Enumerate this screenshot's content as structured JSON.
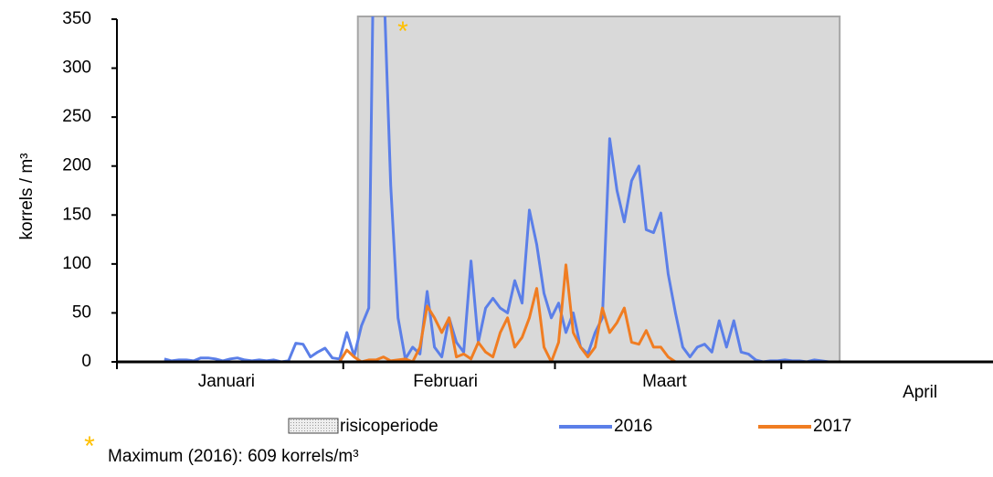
{
  "chart_data": {
    "type": "line",
    "y_label": "korrels / m³",
    "categories": [
      null,
      null,
      null,
      null,
      null,
      null,
      null,
      null,
      null,
      null,
      null,
      null,
      null,
      null,
      null,
      "Januari",
      null,
      null,
      null,
      null,
      null,
      null,
      null,
      null,
      null,
      null,
      null,
      null,
      null,
      null,
      null,
      null,
      null,
      null,
      null,
      null,
      null,
      null,
      null,
      null,
      null,
      null,
      null,
      null,
      null,
      "Februari",
      null,
      null,
      null,
      null,
      null,
      null,
      null,
      null,
      null,
      null,
      null,
      null,
      null,
      null,
      null,
      null,
      null,
      null,
      null,
      null,
      null,
      null,
      null,
      null,
      null,
      null,
      null,
      null,
      null,
      "Maart",
      null,
      null,
      null,
      null,
      null,
      null,
      null,
      null,
      null,
      null,
      null,
      null,
      null,
      null,
      null,
      null,
      null,
      null,
      null,
      null,
      null,
      null,
      null,
      null,
      null,
      null,
      null,
      null,
      null,
      null,
      null,
      null,
      null,
      null,
      "April",
      null,
      null,
      null,
      null,
      null,
      null,
      null,
      null,
      null
    ],
    "xticks": [
      0,
      31,
      60,
      91
    ],
    "ylim": [
      0,
      350
    ],
    "yticks": [
      0,
      50,
      100,
      150,
      200,
      250,
      300,
      350
    ],
    "risk_period": {
      "name": "risicoperiode",
      "start": 33,
      "end": 99,
      "color": "#d9d9d9"
    },
    "series": [
      {
        "name": "2016",
        "color": "#5b7fe8",
        "values": [
          null,
          null,
          null,
          null,
          null,
          null,
          3,
          1,
          2,
          2,
          1,
          4,
          4,
          3,
          1,
          3,
          4,
          2,
          1,
          2,
          1,
          2,
          0,
          1,
          19,
          18,
          5,
          10,
          14,
          4,
          3,
          30,
          6,
          37,
          55,
          609,
          400,
          180,
          45,
          3,
          15,
          8,
          72,
          15,
          5,
          45,
          20,
          10,
          103,
          20,
          55,
          65,
          55,
          50,
          83,
          60,
          155,
          120,
          70,
          45,
          60,
          30,
          50,
          15,
          8,
          30,
          45,
          228,
          175,
          143,
          185,
          200,
          135,
          132,
          152,
          90,
          50,
          15,
          5,
          15,
          18,
          10,
          42,
          15,
          42,
          10,
          8,
          2,
          0,
          1,
          1,
          2,
          1,
          1,
          0,
          2,
          1,
          0,
          0,
          0,
          0,
          0,
          0,
          0,
          0,
          0,
          0,
          0,
          0,
          0,
          0,
          0,
          0,
          0,
          0,
          0,
          0,
          0,
          0,
          0
        ]
      },
      {
        "name": "2017",
        "color": "#f07d22",
        "values": [
          null,
          null,
          null,
          null,
          null,
          null,
          null,
          null,
          null,
          null,
          null,
          null,
          null,
          null,
          null,
          null,
          null,
          null,
          null,
          null,
          null,
          null,
          null,
          null,
          null,
          0,
          0,
          0,
          0,
          0,
          0,
          12,
          5,
          0,
          2,
          2,
          5,
          1,
          2,
          3,
          0,
          15,
          57,
          45,
          30,
          45,
          5,
          8,
          3,
          20,
          10,
          5,
          30,
          45,
          15,
          25,
          45,
          75,
          15,
          0,
          20,
          99,
          30,
          15,
          5,
          15,
          55,
          30,
          40,
          55,
          20,
          18,
          32,
          15,
          15,
          5,
          0,
          0,
          0,
          0,
          0,
          0,
          0,
          0,
          0,
          0,
          0,
          0,
          0,
          0,
          0,
          0,
          0,
          0,
          0,
          0,
          0,
          0,
          0,
          0,
          0,
          0,
          0,
          0,
          0,
          0,
          0,
          0,
          0,
          0,
          0,
          0,
          0,
          0,
          0,
          0,
          0,
          0,
          0,
          0
        ]
      }
    ],
    "annotations": [
      {
        "text": "*",
        "color": "#ffc000"
      }
    ],
    "footnote": {
      "marker": "*",
      "text": "Maximum  (2016): 609 korrels/m³"
    }
  }
}
